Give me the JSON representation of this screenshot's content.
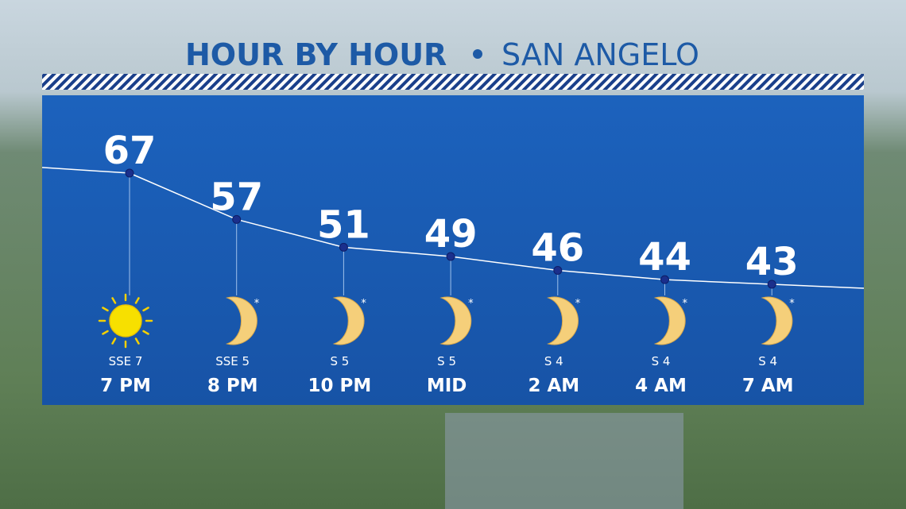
{
  "chart_data": {
    "type": "line",
    "title": "HOUR BY HOUR",
    "subtitle": "SAN ANGELO",
    "categories": [
      "7 PM",
      "8 PM",
      "10 PM",
      "MID",
      "2 AM",
      "4 AM",
      "7 AM"
    ],
    "values": [
      67,
      57,
      51,
      49,
      46,
      44,
      43
    ],
    "wind": [
      "SSE 7",
      "SSE 5",
      "S 5",
      "S 5",
      "S 4",
      "S 4",
      "S 4"
    ],
    "icon_marks": [
      null,
      "*",
      "*",
      "*",
      "*",
      "*",
      "*"
    ],
    "color": "#ffffff"
  }
}
